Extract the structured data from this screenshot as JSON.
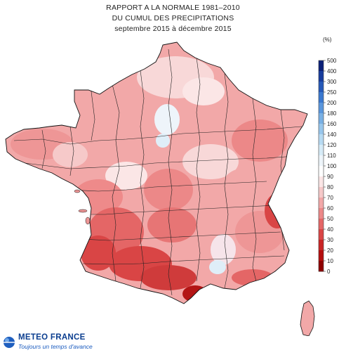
{
  "title": {
    "line1": "RAPPORT A LA NORMALE 1981–2010",
    "line2": "DU CUMUL DES PRECIPITATIONS",
    "line3": "septembre 2015 à décembre 2015"
  },
  "legend": {
    "unit": "(%)",
    "ticks": [
      "500",
      "400",
      "300",
      "250",
      "200",
      "180",
      "160",
      "140",
      "120",
      "110",
      "100",
      "90",
      "80",
      "70",
      "60",
      "50",
      "40",
      "30",
      "20",
      "10",
      "0"
    ],
    "colors": [
      "#0a1f78",
      "#173c9d",
      "#2559b8",
      "#3a78cf",
      "#5a96dc",
      "#79b0e4",
      "#98c6ec",
      "#b7daf2",
      "#d6ebf7",
      "#eef5fa",
      "#ffffff",
      "#fbe6e6",
      "#f6c9c9",
      "#f2a8a8",
      "#ec8888",
      "#e46666",
      "#d94545",
      "#c92424",
      "#b40d0d",
      "#8e0000"
    ]
  },
  "logo": {
    "name": "METEO FRANCE",
    "tagline": "Toujours un temps d'avance"
  },
  "map": {
    "colors": {
      "light": "#f6c9c9",
      "medium": "#ee9696",
      "strong": "#e46666",
      "deep": "#cf3b3b",
      "darkest": "#b31515",
      "pale": "#fbe6e6",
      "blueish": "#dfeef8",
      "white": "#ffffff"
    }
  }
}
